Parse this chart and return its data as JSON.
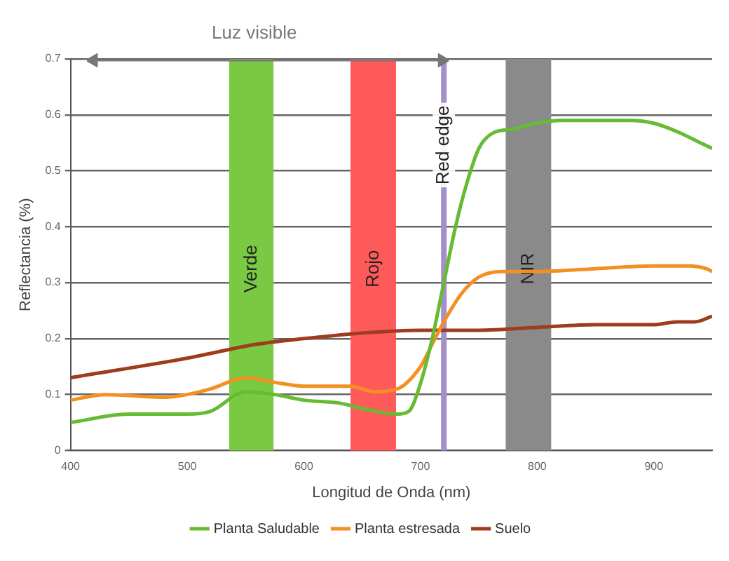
{
  "chart_data": {
    "type": "line",
    "xlabel": "Longitud de Onda (nm)",
    "ylabel": "Reflectancia (%)",
    "annotations": [
      "Luz visible"
    ],
    "xlim": [
      400,
      950
    ],
    "xticks": [
      400,
      500,
      600,
      700,
      800,
      900
    ],
    "ylim": [
      0,
      0.7
    ],
    "yticks": [
      0,
      0.1,
      0.2,
      0.3,
      0.4,
      0.5,
      0.6,
      0.7
    ],
    "grid": "y",
    "legend": "bottom",
    "marker": "none",
    "line_style": "solid",
    "bands": [
      {
        "axis": "x",
        "from": 536,
        "to": 574,
        "label": "Verde",
        "color": "#7ac943"
      },
      {
        "axis": "x",
        "from": 640,
        "to": 679,
        "label": "Rojo",
        "color": "#ff5a5a"
      },
      {
        "axis": "x",
        "from": 773,
        "to": 812,
        "label": "NIR",
        "color": "#8a8a8a"
      }
    ],
    "ref_lines": [
      {
        "axis": "x",
        "value": 720,
        "label": "Red edge",
        "color": "#a58fcb"
      }
    ],
    "series": [
      {
        "name": "Planta Saludable",
        "color": "#66bb33",
        "x": [
          400,
          450,
          500,
          520,
          550,
          575,
          600,
          630,
          650,
          680,
          690,
          700,
          710,
          720,
          730,
          740,
          750,
          760,
          780,
          800,
          820,
          850,
          880,
          900,
          920,
          940,
          950
        ],
        "values": [
          0.05,
          0.065,
          0.065,
          0.07,
          0.105,
          0.1,
          0.09,
          0.085,
          0.075,
          0.065,
          0.07,
          0.12,
          0.2,
          0.3,
          0.4,
          0.48,
          0.54,
          0.565,
          0.575,
          0.585,
          0.59,
          0.59,
          0.59,
          0.585,
          0.57,
          0.55,
          0.54
        ]
      },
      {
        "name": "Planta estresada",
        "color": "#f39022",
        "x": [
          400,
          430,
          480,
          500,
          520,
          550,
          580,
          600,
          640,
          660,
          680,
          700,
          710,
          720,
          735,
          750,
          770,
          800,
          850,
          900,
          930,
          945,
          950
        ],
        "values": [
          0.09,
          0.1,
          0.095,
          0.1,
          0.11,
          0.13,
          0.12,
          0.115,
          0.115,
          0.105,
          0.11,
          0.15,
          0.19,
          0.23,
          0.28,
          0.31,
          0.32,
          0.32,
          0.325,
          0.33,
          0.33,
          0.325,
          0.32
        ]
      },
      {
        "name": "Suelo",
        "color": "#a03c1e",
        "x": [
          400,
          500,
          560,
          600,
          650,
          700,
          750,
          800,
          850,
          900,
          920,
          935,
          950
        ],
        "values": [
          0.13,
          0.165,
          0.19,
          0.2,
          0.21,
          0.215,
          0.215,
          0.22,
          0.225,
          0.225,
          0.23,
          0.23,
          0.24
        ]
      }
    ]
  }
}
